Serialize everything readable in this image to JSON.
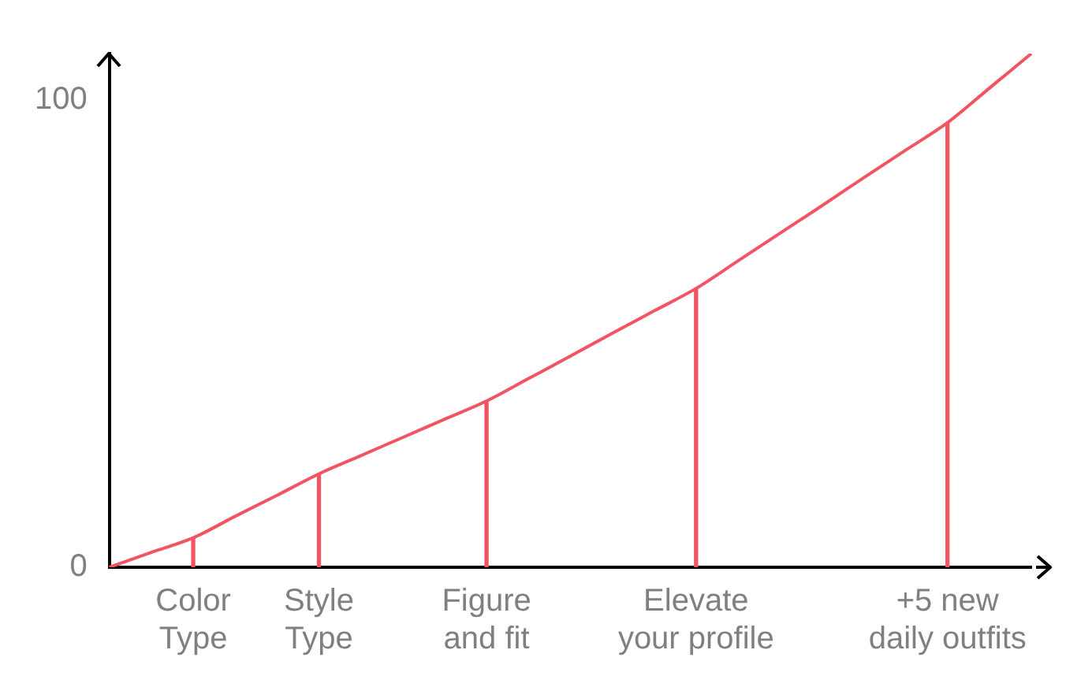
{
  "chart_data": {
    "type": "line",
    "ylim": [
      0,
      110
    ],
    "yticks": [
      0,
      100
    ],
    "categories": [
      null,
      null,
      "Color Type",
      null,
      null,
      "Style Type",
      null,
      null,
      null,
      "Figure and fit",
      null,
      null,
      null,
      null,
      "Elevate your profile",
      null,
      null,
      null,
      null,
      null,
      "+5 new daily outfits",
      null,
      null
    ],
    "series": [
      {
        "color": "#f25562",
        "marker": "none",
        "values": [
          0,
          3.2,
          6.3,
          10.9,
          15.4,
          20,
          23.9,
          27.8,
          31.7,
          35.6,
          40.4,
          45.2,
          50.1,
          54.9,
          59.7,
          65.6,
          71.5,
          77.4,
          83.4,
          89.3,
          95.2,
          102.6,
          110
        ]
      },
      {
        "type": "bar",
        "color": "#f25562",
        "marker": "none",
        "values": [
          null,
          null,
          6.3,
          null,
          null,
          20,
          null,
          null,
          null,
          35.6,
          null,
          null,
          null,
          null,
          59.7,
          null,
          null,
          null,
          null,
          null,
          95.2,
          null,
          null
        ]
      }
    ],
    "grid": false
  }
}
